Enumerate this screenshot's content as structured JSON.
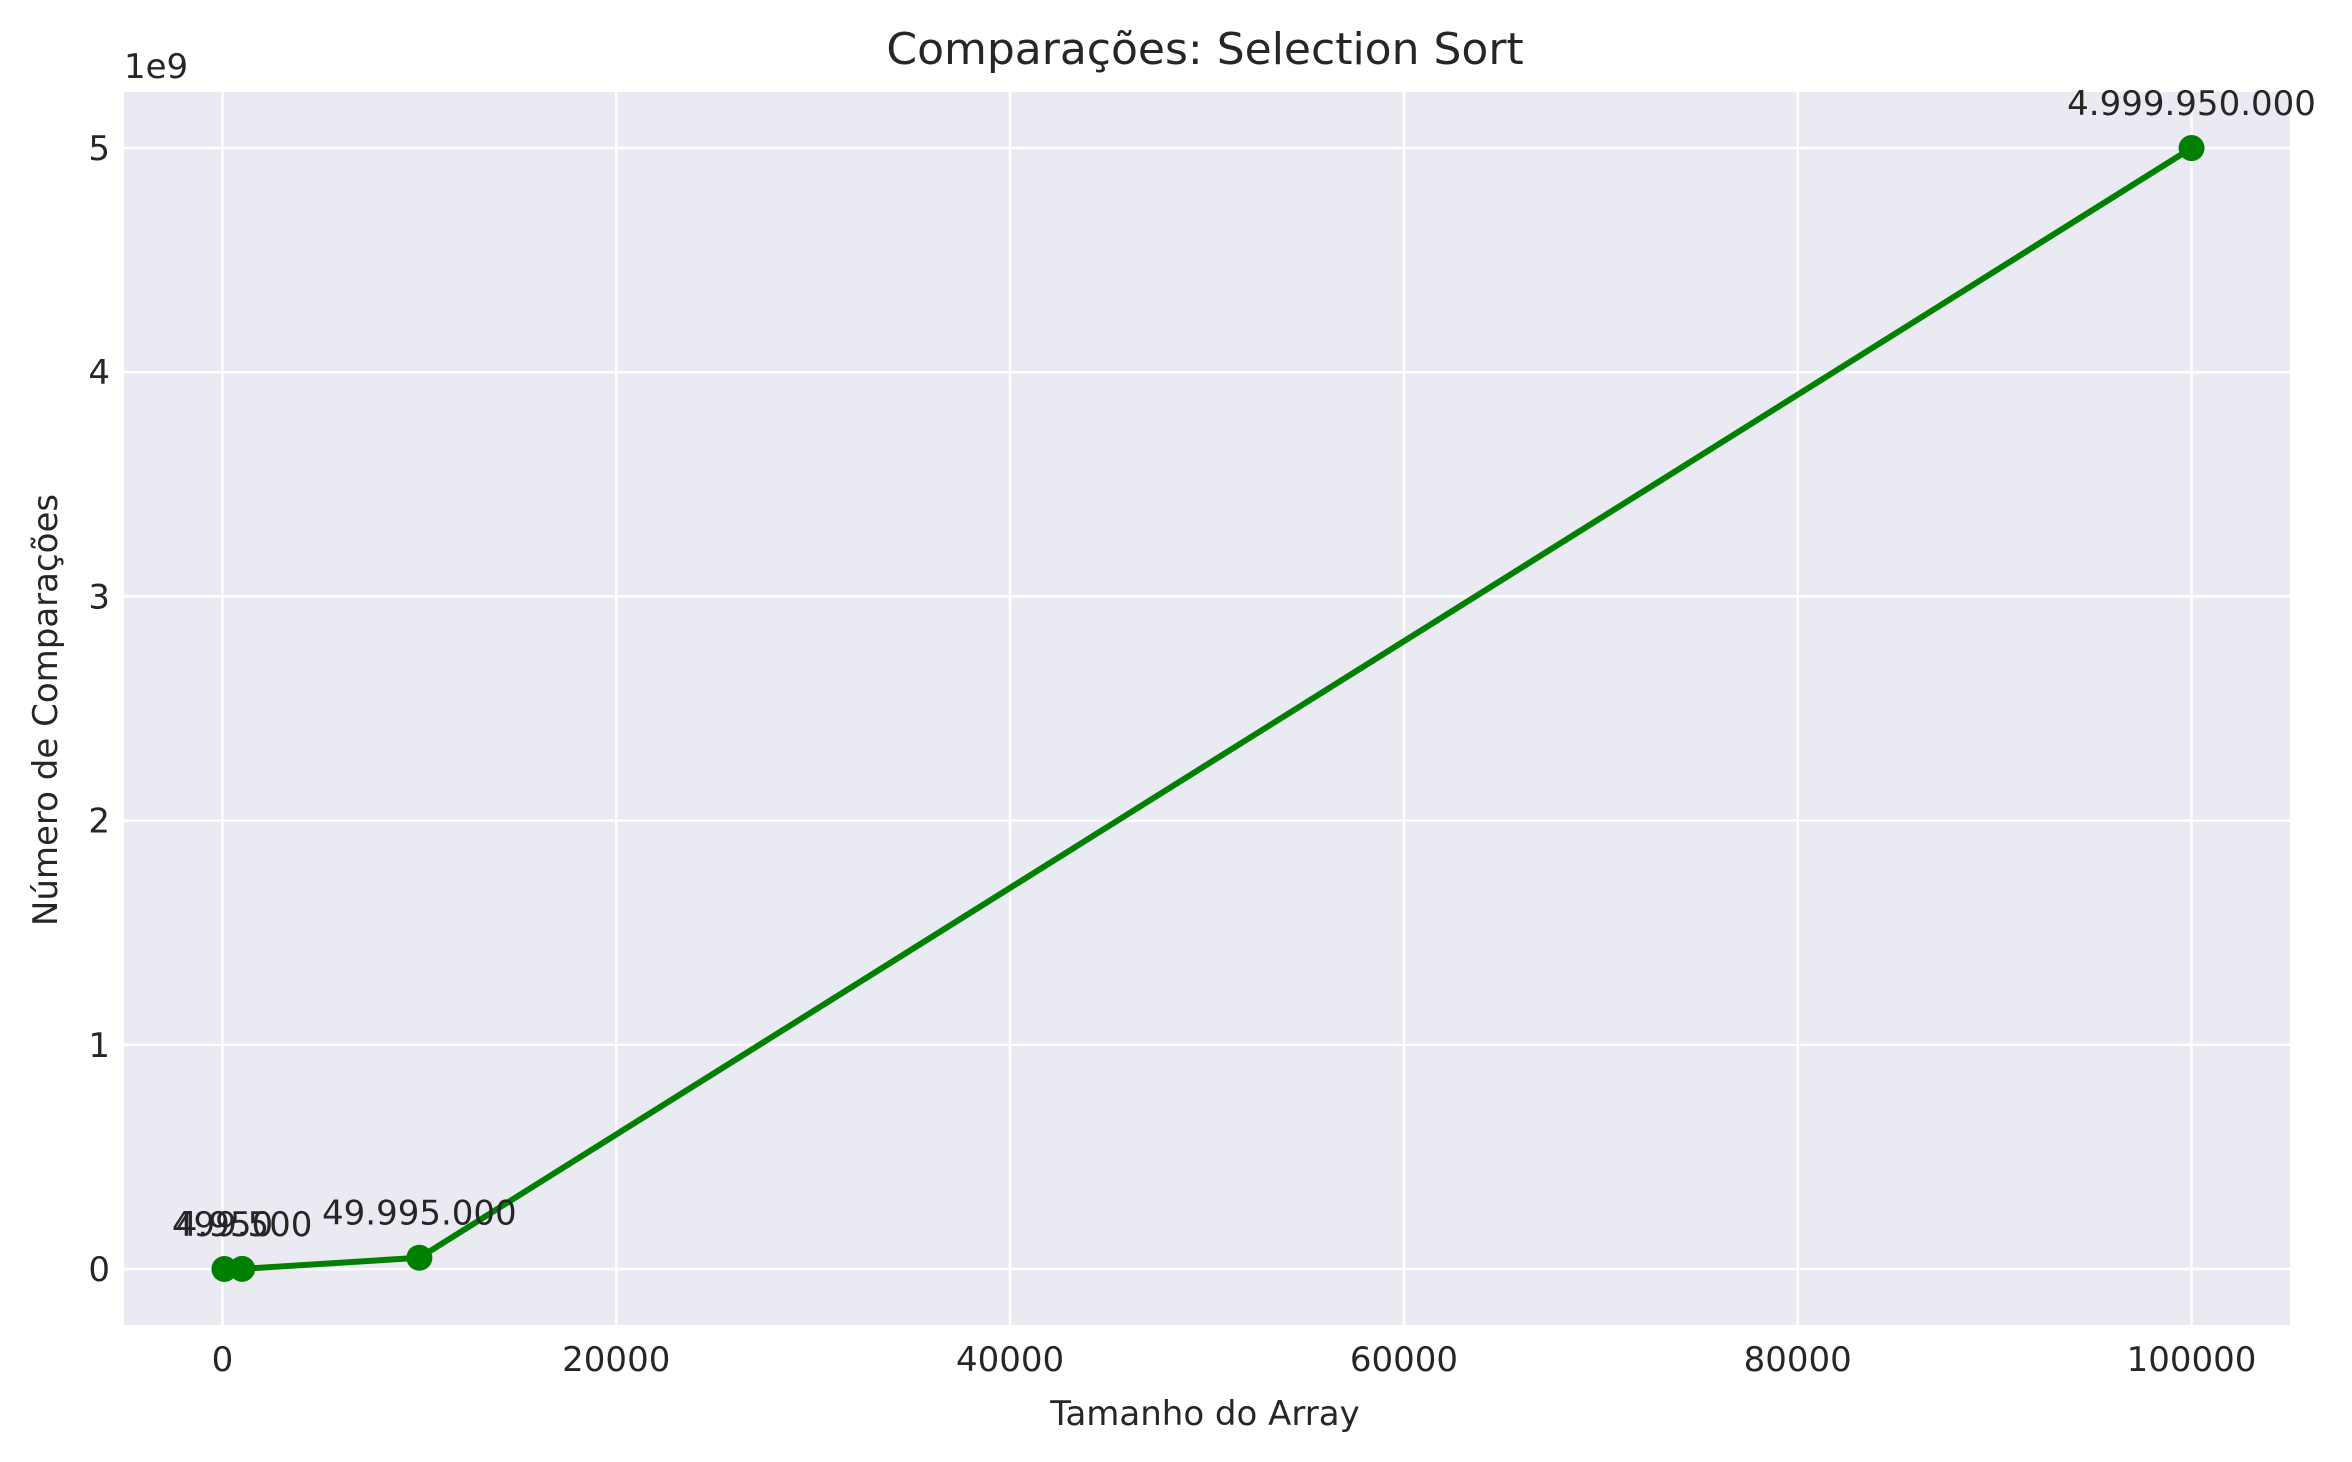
{
  "chart_data": {
    "type": "line",
    "title": "Comparações: Selection Sort",
    "xlabel": "Tamanho do Array",
    "ylabel": "Número de Comparações",
    "y_offset_label": "1e9",
    "xlim": [
      -5000,
      105000
    ],
    "ylim": [
      -250000000,
      5250000000
    ],
    "x_ticks": [
      0,
      20000,
      40000,
      60000,
      80000,
      100000
    ],
    "x_tick_labels": [
      "0",
      "20000",
      "40000",
      "60000",
      "80000",
      "100000"
    ],
    "y_ticks": [
      0,
      1000000000,
      2000000000,
      3000000000,
      4000000000,
      5000000000
    ],
    "y_tick_labels": [
      "0",
      "1",
      "2",
      "3",
      "4",
      "5"
    ],
    "grid": true,
    "series": [
      {
        "color": "#008000",
        "x": [
          100,
          1000,
          10000,
          100000
        ],
        "y": [
          4950,
          499500,
          49995000,
          4999950000
        ],
        "point_labels": [
          "4.950",
          "499.500",
          "49.995.000",
          "4.999.950.000"
        ]
      }
    ]
  }
}
